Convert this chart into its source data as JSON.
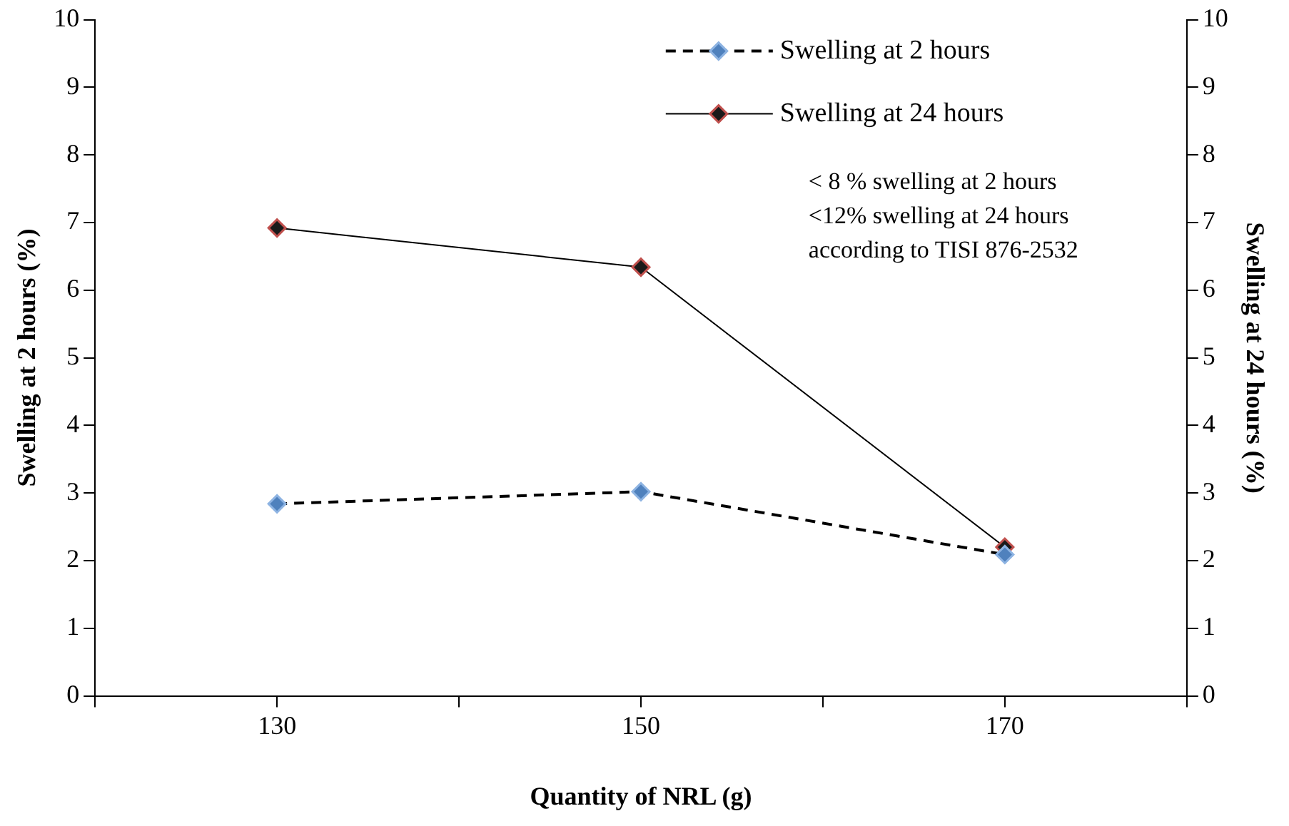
{
  "chart_data": {
    "type": "line",
    "xlabel": "Quantity of NRL (g)",
    "ylabel": "Swelling at 2 hours (%)",
    "y2label": "Swelling at 24 hours (%)",
    "x": [
      130,
      150,
      170
    ],
    "series": [
      {
        "name": "Swelling at 2 hours",
        "color": "#4f81bd",
        "values": [
          2.84,
          3.02,
          2.09
        ],
        "line_style": "dashed"
      },
      {
        "name": "Swelling at 24 hours",
        "color": "#1a1a1a",
        "values": [
          6.92,
          6.34,
          2.2
        ],
        "axis": "y2",
        "line_style": "solid"
      }
    ],
    "xlim": [
      120,
      180
    ],
    "xticks": [
      {
        "value": 120,
        "label": null
      },
      130,
      {
        "value": 140,
        "label": null
      },
      150,
      {
        "value": 160,
        "label": null
      },
      170,
      {
        "value": 180,
        "label": null
      }
    ],
    "ylim": [
      0,
      10
    ],
    "yticks": [
      0,
      1,
      2,
      3,
      4,
      5,
      6,
      7,
      8,
      9,
      10
    ],
    "y2lim": [
      0,
      10
    ],
    "y2ticks": [
      0,
      1,
      2,
      3,
      4,
      5,
      6,
      7,
      8,
      9,
      10
    ],
    "grid": false,
    "legend": "top right",
    "marker": "diamond",
    "annotations": [
      "< 8 % swelling at 2 hours",
      "<12% swelling at 24 hours",
      "according to TISI 876-2532"
    ]
  }
}
